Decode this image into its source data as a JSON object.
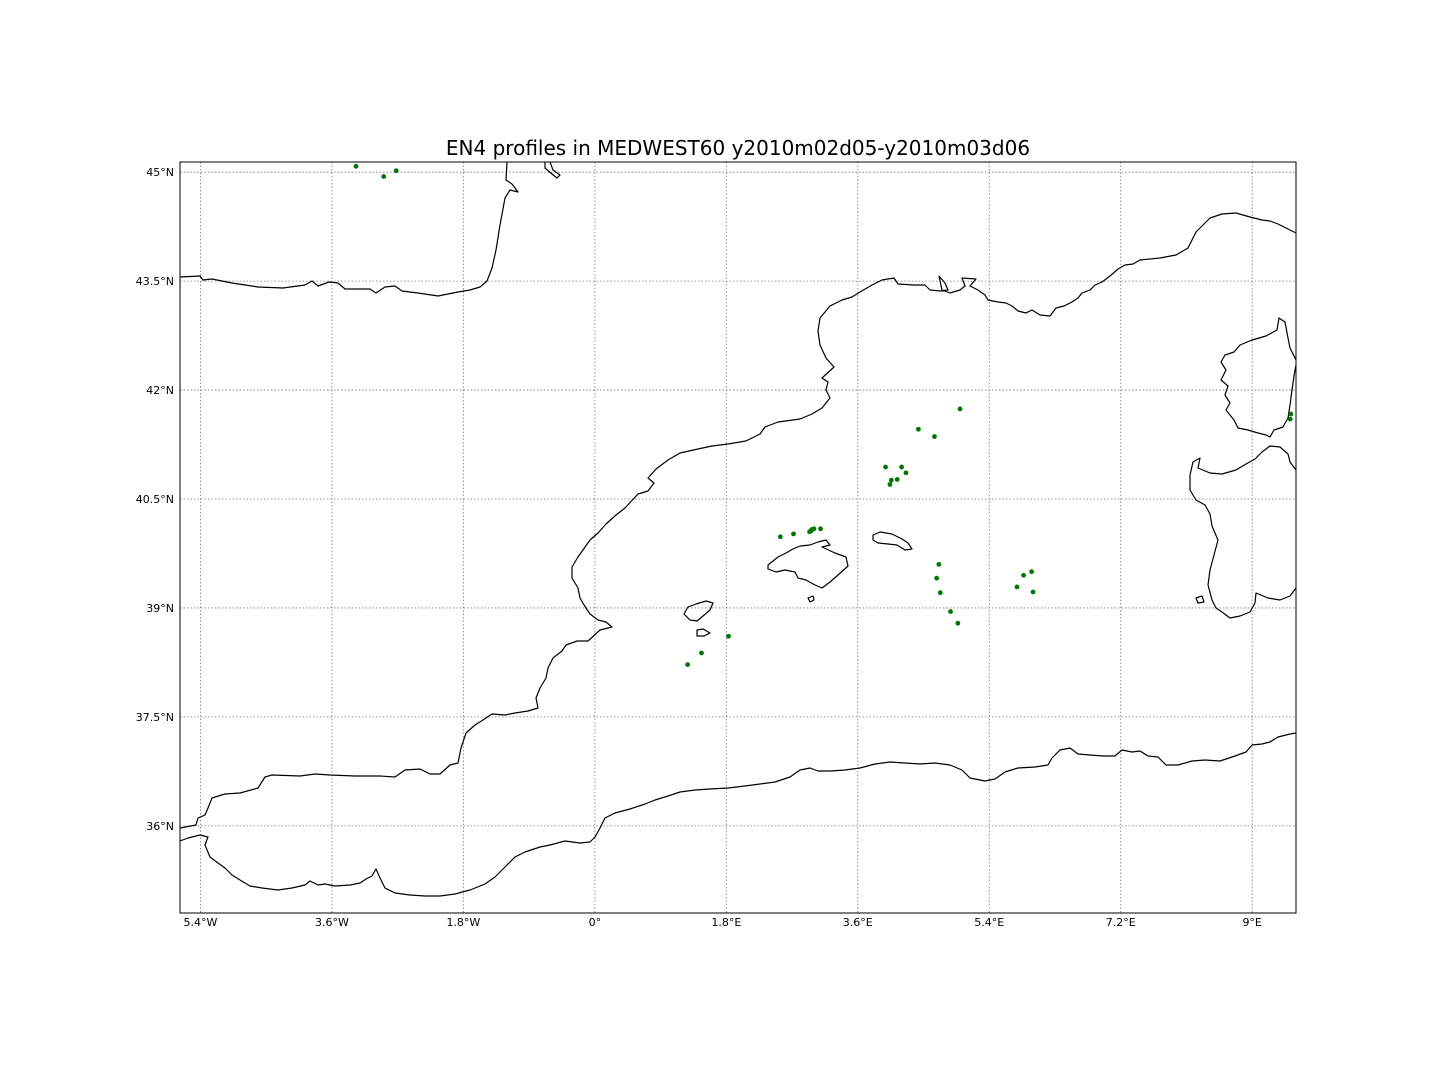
{
  "title": "EN4 profiles in MEDWEST60 y2010m02d05-y2010m03d06",
  "colors": {
    "profile_marker": "#007700",
    "coastline": "#000000",
    "gridline": "#777777"
  },
  "chart_data": {
    "type": "scatter",
    "projection": "PlateCarree",
    "xlim": [
      -5.68,
      9.6
    ],
    "ylim": [
      34.8,
      45.14
    ],
    "x_ticks": [
      -5.4,
      -3.6,
      -1.8,
      0,
      1.8,
      3.6,
      5.4,
      7.2,
      9.0
    ],
    "x_tick_labels": [
      "5.4°W",
      "3.6°W",
      "1.8°W",
      "0°",
      "1.8°E",
      "3.6°E",
      "5.4°E",
      "7.2°E",
      "9°E"
    ],
    "y_ticks": [
      45,
      43.5,
      42,
      40.5,
      39,
      37.5,
      36
    ],
    "y_tick_labels": [
      "45°N",
      "43.5°N",
      "42°N",
      "40.5°N",
      "39°N",
      "37.5°N",
      "36°N"
    ],
    "grid": true,
    "points": [
      {
        "lon": -3.27,
        "lat": 45.08
      },
      {
        "lon": -2.89,
        "lat": 44.94
      },
      {
        "lon": -2.72,
        "lat": 45.02
      },
      {
        "lon": 5.0,
        "lat": 41.74
      },
      {
        "lon": 4.43,
        "lat": 41.46
      },
      {
        "lon": 4.65,
        "lat": 41.36
      },
      {
        "lon": 3.98,
        "lat": 40.94
      },
      {
        "lon": 4.2,
        "lat": 40.94
      },
      {
        "lon": 4.26,
        "lat": 40.86
      },
      {
        "lon": 4.06,
        "lat": 40.76
      },
      {
        "lon": 4.14,
        "lat": 40.77
      },
      {
        "lon": 4.04,
        "lat": 40.7
      },
      {
        "lon": 3.0,
        "lat": 40.09
      },
      {
        "lon": 2.94,
        "lat": 40.05
      },
      {
        "lon": 2.96,
        "lat": 40.06
      },
      {
        "lon": 2.97,
        "lat": 40.08
      },
      {
        "lon": 3.09,
        "lat": 40.09
      },
      {
        "lon": 2.72,
        "lat": 40.02
      },
      {
        "lon": 2.54,
        "lat": 39.98
      },
      {
        "lon": 4.71,
        "lat": 39.6
      },
      {
        "lon": 4.68,
        "lat": 39.41
      },
      {
        "lon": 4.73,
        "lat": 39.21
      },
      {
        "lon": 4.87,
        "lat": 38.95
      },
      {
        "lon": 4.97,
        "lat": 38.79
      },
      {
        "lon": 5.78,
        "lat": 39.29
      },
      {
        "lon": 5.87,
        "lat": 39.45
      },
      {
        "lon": 5.98,
        "lat": 39.5
      },
      {
        "lon": 6.0,
        "lat": 39.22
      },
      {
        "lon": 1.83,
        "lat": 38.61
      },
      {
        "lon": 1.46,
        "lat": 38.38
      },
      {
        "lon": 1.27,
        "lat": 38.22
      },
      {
        "lon": 9.53,
        "lat": 41.67
      },
      {
        "lon": 9.52,
        "lat": 41.6
      }
    ]
  }
}
